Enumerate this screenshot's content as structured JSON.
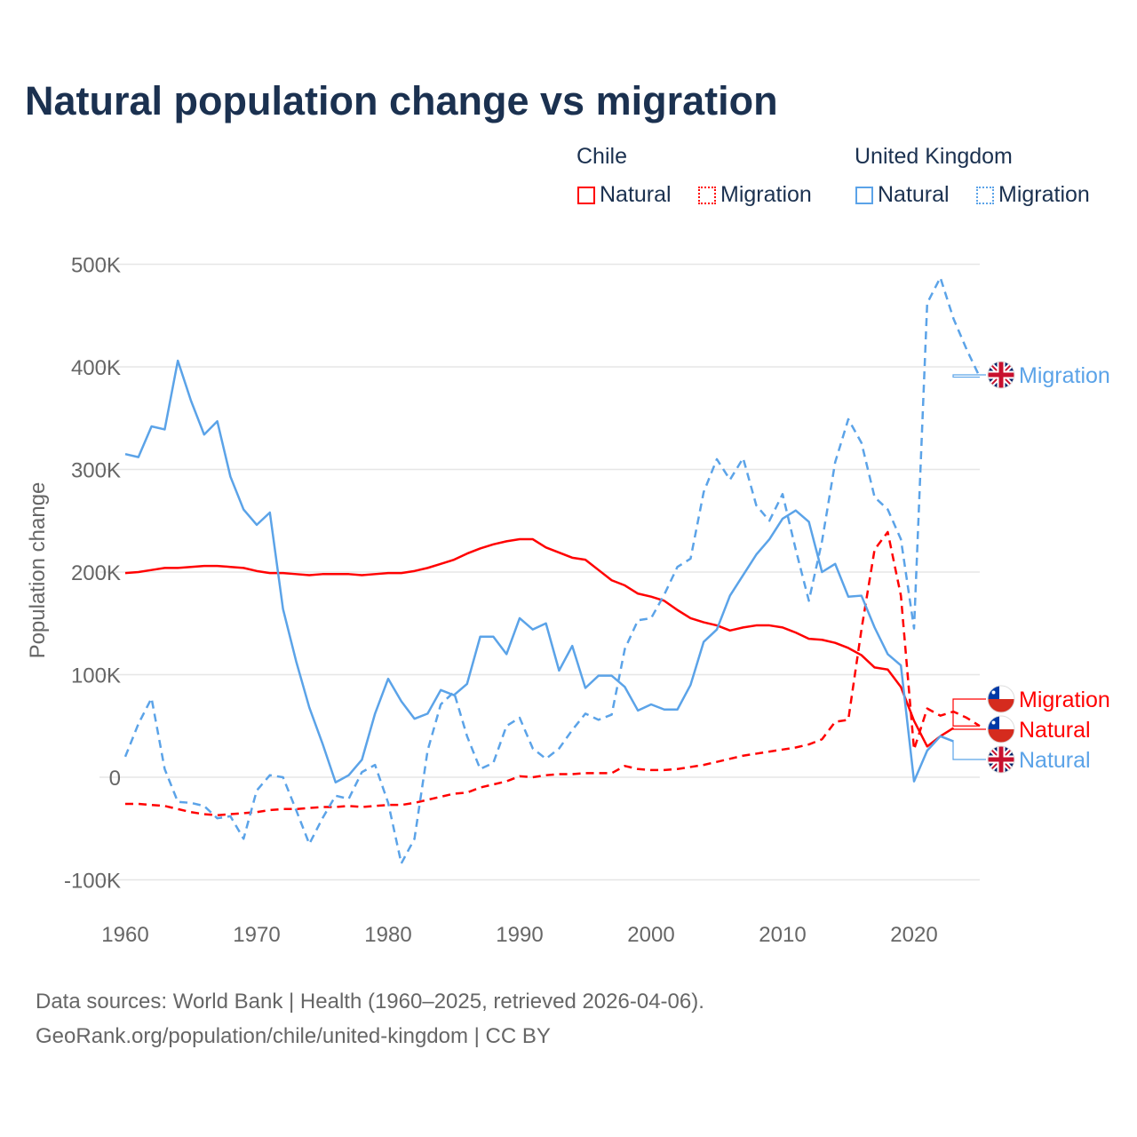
{
  "chart_data": {
    "type": "line",
    "title": "Natural population change vs migration",
    "xlabel": "",
    "ylabel": "Population change",
    "xlim": [
      1960,
      2025
    ],
    "ylim": [
      -100000,
      500000
    ],
    "yticks": [
      -100000,
      0,
      100000,
      200000,
      300000,
      400000,
      500000
    ],
    "ytick_labels": [
      "-100K",
      "0",
      "100K",
      "200K",
      "300K",
      "400K",
      "500K"
    ],
    "xticks": [
      1960,
      1970,
      1980,
      1990,
      2000,
      2010,
      2020
    ],
    "xtick_labels": [
      "1960",
      "1970",
      "1980",
      "1990",
      "2000",
      "2010",
      "2020"
    ],
    "grid": true,
    "legend_placement": "top-right",
    "legend_groups": [
      "Chile",
      "United Kingdom"
    ],
    "series": [
      {
        "country": "Chile",
        "name": "Natural",
        "color": "#ff0000",
        "dash": "solid",
        "start_year": 1960,
        "values_k": [
          199,
          200,
          202,
          204,
          204,
          205,
          206,
          206,
          205,
          204,
          201,
          199,
          199,
          198,
          197,
          198,
          198,
          198,
          197,
          198,
          199,
          199,
          201,
          204,
          208,
          212,
          218,
          223,
          227,
          230,
          232,
          232,
          224,
          219,
          214,
          212,
          202,
          192,
          187,
          179,
          176,
          172,
          163,
          155,
          151,
          148,
          143,
          146,
          148,
          148,
          146,
          141,
          135,
          134,
          131,
          126,
          119,
          107,
          105,
          88,
          55,
          30,
          40,
          48
        ]
      },
      {
        "country": "Chile",
        "name": "Migration",
        "color": "#ff0000",
        "dash": "dashed",
        "start_year": 1960,
        "values_k": [
          -26,
          -26,
          -27,
          -28,
          -31,
          -34,
          -36,
          -37,
          -36,
          -35,
          -34,
          -32,
          -31,
          -31,
          -30,
          -29,
          -29,
          -28,
          -29,
          -28,
          -27,
          -27,
          -25,
          -22,
          -19,
          -16,
          -15,
          -10,
          -7,
          -4,
          1,
          0,
          2,
          3,
          3,
          4,
          4,
          4,
          11,
          8,
          7,
          7,
          8,
          10,
          12,
          15,
          18,
          21,
          23,
          25,
          27,
          29,
          32,
          37,
          54,
          56,
          144,
          222,
          239,
          177,
          27,
          67,
          60,
          64,
          58,
          50
        ]
      },
      {
        "country": "United Kingdom",
        "name": "Natural",
        "color": "#5ba3e8",
        "dash": "solid",
        "start_year": 1960,
        "values_k": [
          315,
          312,
          342,
          339,
          406,
          367,
          334,
          347,
          293,
          261,
          246,
          258,
          164,
          113,
          68,
          33,
          -5,
          2,
          17,
          62,
          96,
          74,
          57,
          62,
          85,
          80,
          91,
          137,
          137,
          120,
          155,
          144,
          150,
          104,
          128,
          87,
          99,
          99,
          88,
          65,
          71,
          66,
          66,
          90,
          132,
          144,
          177,
          197,
          217,
          232,
          252,
          260,
          249,
          200,
          208,
          176,
          177,
          146,
          120,
          109,
          -4,
          26,
          40,
          35
        ]
      },
      {
        "country": "United Kingdom",
        "name": "Migration",
        "color": "#5ba3e8",
        "dash": "dashed",
        "start_year": 1960,
        "values_k": [
          20,
          52,
          77,
          8,
          -24,
          -25,
          -28,
          -40,
          -38,
          -60,
          -13,
          2,
          0,
          -32,
          -65,
          -40,
          -18,
          -21,
          5,
          12,
          -25,
          -84,
          -60,
          26,
          71,
          83,
          40,
          8,
          14,
          50,
          58,
          28,
          18,
          28,
          46,
          62,
          56,
          61,
          125,
          153,
          155,
          178,
          205,
          213,
          278,
          310,
          290,
          311,
          265,
          250,
          276,
          222,
          172,
          230,
          307,
          349,
          326,
          273,
          261,
          232,
          145,
          462,
          487,
          447,
          417,
          390
        ]
      }
    ],
    "end_labels": [
      {
        "text": "Migration",
        "country": "United Kingdom"
      },
      {
        "text": "Migration",
        "country": "Chile"
      },
      {
        "text": "Natural",
        "country": "Chile"
      },
      {
        "text": "Natural",
        "country": "United Kingdom"
      }
    ]
  },
  "legend": {
    "chile": {
      "group": "Chile",
      "natural": "Natural",
      "migration": "Migration"
    },
    "uk": {
      "group": "United Kingdom",
      "natural": "Natural",
      "migration": "Migration"
    }
  },
  "source": {
    "line1": "Data sources: World Bank | Health (1960–2025, retrieved 2026-04-06).",
    "line2": "GeoRank.org/population/chile/united-kingdom | CC BY"
  }
}
